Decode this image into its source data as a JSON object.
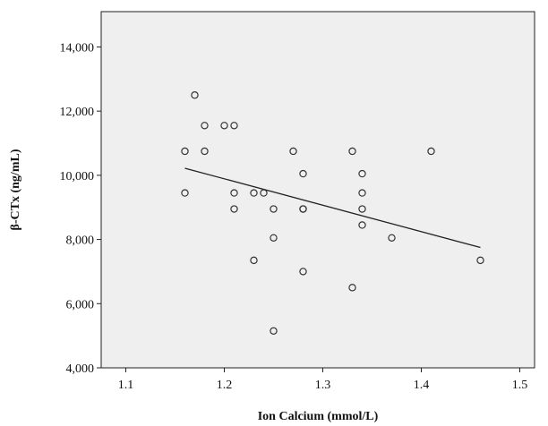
{
  "chart_data": {
    "type": "scatter",
    "title": "",
    "xlabel": "Ion Calcium (mmol/L)",
    "ylabel": "β-CTx (ng/mL)",
    "xlim": [
      1.075,
      1.515
    ],
    "ylim": [
      4000,
      15100
    ],
    "x_ticks": [
      1.1,
      1.2,
      1.3,
      1.4,
      1.5
    ],
    "x_tick_labels": [
      "1.1",
      "1.2",
      "1.3",
      "1.4",
      "1.5"
    ],
    "y_ticks": [
      4000,
      6000,
      8000,
      10000,
      12000,
      14000
    ],
    "y_tick_labels": [
      "4,000",
      "6,000",
      "8,000",
      "10,000",
      "12,000",
      "14,000"
    ],
    "grid": false,
    "plot_background": "#efefef",
    "marker_color": "#333333",
    "fit_line_color": "#222222",
    "points": [
      {
        "x": 1.16,
        "y": 10750
      },
      {
        "x": 1.16,
        "y": 9450
      },
      {
        "x": 1.17,
        "y": 12500
      },
      {
        "x": 1.18,
        "y": 11550
      },
      {
        "x": 1.18,
        "y": 10750
      },
      {
        "x": 1.2,
        "y": 11550
      },
      {
        "x": 1.21,
        "y": 11550
      },
      {
        "x": 1.21,
        "y": 9450
      },
      {
        "x": 1.21,
        "y": 8950
      },
      {
        "x": 1.23,
        "y": 9450
      },
      {
        "x": 1.23,
        "y": 7350
      },
      {
        "x": 1.24,
        "y": 9450
      },
      {
        "x": 1.25,
        "y": 8950
      },
      {
        "x": 1.25,
        "y": 8050
      },
      {
        "x": 1.25,
        "y": 5150
      },
      {
        "x": 1.27,
        "y": 10750
      },
      {
        "x": 1.28,
        "y": 10050
      },
      {
        "x": 1.28,
        "y": 8950
      },
      {
        "x": 1.28,
        "y": 8950
      },
      {
        "x": 1.28,
        "y": 7000
      },
      {
        "x": 1.33,
        "y": 10750
      },
      {
        "x": 1.33,
        "y": 6500
      },
      {
        "x": 1.34,
        "y": 10050
      },
      {
        "x": 1.34,
        "y": 9450
      },
      {
        "x": 1.34,
        "y": 8950
      },
      {
        "x": 1.34,
        "y": 8450
      },
      {
        "x": 1.37,
        "y": 8050
      },
      {
        "x": 1.41,
        "y": 10750
      },
      {
        "x": 1.46,
        "y": 7350
      }
    ],
    "fit_line": {
      "x": [
        1.16,
        1.46
      ],
      "y": [
        10220,
        7750
      ]
    }
  }
}
